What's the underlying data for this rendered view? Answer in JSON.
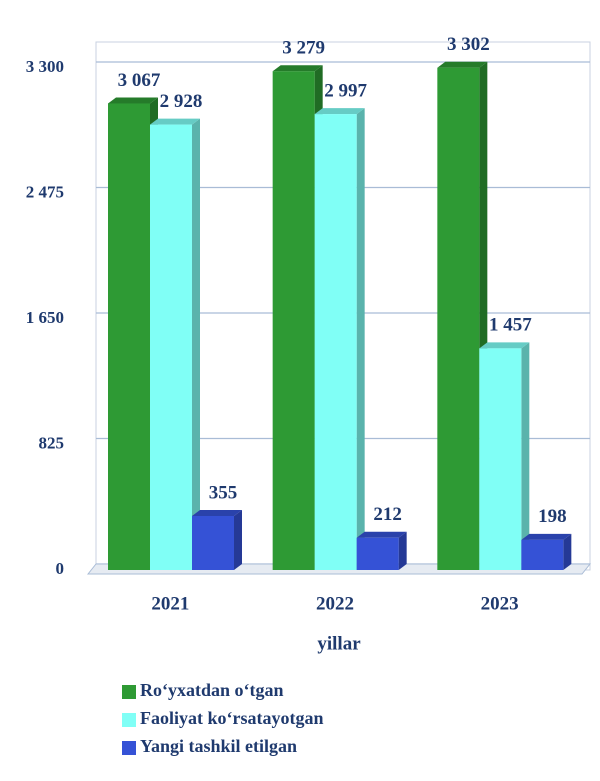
{
  "chart_data": {
    "type": "bar3d",
    "x_label": "yillar",
    "categories": [
      "2021",
      "2022",
      "2023"
    ],
    "series": [
      {
        "name": "Ro‘yxatdan o‘tgan",
        "color": "#2e9a34",
        "values": [
          3067,
          3279,
          3302
        ],
        "value_labels": [
          "3 067",
          "3 279",
          "3 302"
        ]
      },
      {
        "name": "Faoliyat ko‘rsatayotgan",
        "color": "#80fff6",
        "values": [
          2928,
          2997,
          1457
        ],
        "value_labels": [
          "2 928",
          "2 997",
          "1 457"
        ]
      },
      {
        "name": "Yangi tashkil etilgan",
        "color": "#3552d6",
        "values": [
          355,
          212,
          198
        ],
        "value_labels": [
          "355",
          "212",
          "198"
        ]
      }
    ],
    "ylim": [
      0,
      3300
    ],
    "yticks": [
      0,
      825,
      {
        "value": 1650,
        "label": "1 650"
      },
      {
        "value": 2475,
        "label": "2 475"
      },
      {
        "value": 3300,
        "label": "3 300"
      }
    ],
    "grid": true
  }
}
